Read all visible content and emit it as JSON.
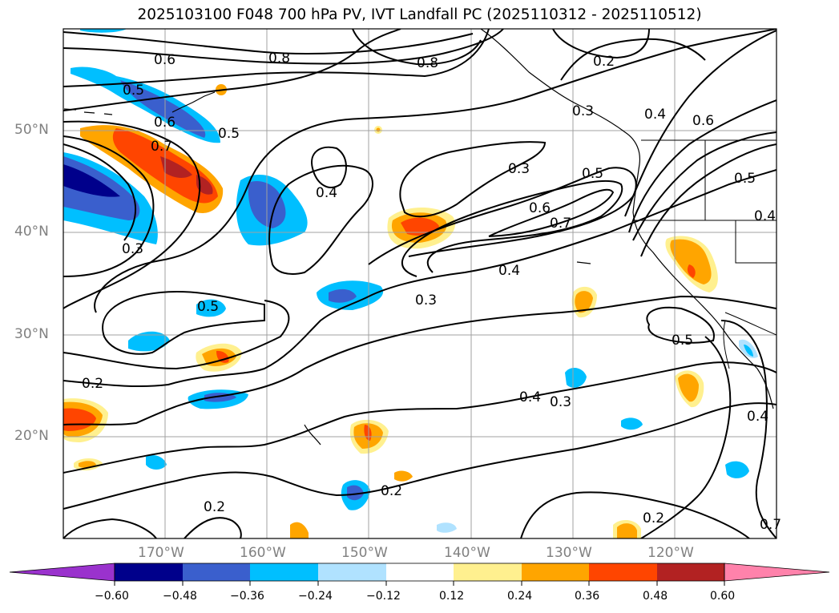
{
  "title": "2025103100 F048 700 hPa PV, IVT Landfall PC (2025110312 - 2025110512)",
  "lat_labels": [
    "50°N",
    "40°N",
    "30°N",
    "20°N"
  ],
  "lon_labels": [
    "170°W",
    "160°W",
    "150°W",
    "140°W",
    "130°W",
    "120°W"
  ],
  "contour_labels": [
    "0.6",
    "0.8",
    "0.8",
    "0.2",
    "0.5",
    "0.6",
    "0.7",
    "0.5",
    "0.4",
    "0.3",
    "0.5",
    "0.3",
    "0.4",
    "0.6",
    "0.3",
    "0.5",
    "0.6",
    "0.7",
    "0.4",
    "0.3",
    "0.5",
    "0.2",
    "0.4",
    "0.3",
    "0.5",
    "0.4",
    "0.2",
    "0.2",
    "0.2",
    "0.7",
    "0.4"
  ],
  "colorbar": {
    "ticks": [
      "−0.60",
      "−0.48",
      "−0.36",
      "−0.24",
      "−0.12",
      "0.12",
      "0.24",
      "0.36",
      "0.48",
      "0.60"
    ],
    "colors": [
      "#9a32cd",
      "#00008b",
      "#3a5fcd",
      "#00bfff",
      "#b0e2ff",
      "#ffffff",
      "#fff08f",
      "#ffa500",
      "#ff4500",
      "#b22222",
      "#ff82ab"
    ]
  }
}
